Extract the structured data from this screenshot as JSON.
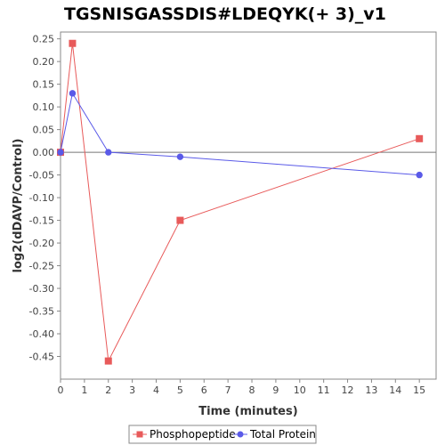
{
  "chart_data": {
    "type": "line",
    "title": "TGSNISGASSDIS#LDEQYK(+ 3)_v1",
    "xlabel": "Time (minutes)",
    "ylabel": "log2(dDAVP/Control)",
    "xlim": [
      0,
      15.7
    ],
    "ylim": [
      -0.5,
      0.265
    ],
    "x_ticks": [
      0,
      1,
      2,
      3,
      4,
      5,
      6,
      7,
      8,
      9,
      10,
      11,
      12,
      13,
      14,
      15
    ],
    "y_ticks": [
      0.25,
      0.2,
      0.15,
      0.1,
      0.05,
      0.0,
      -0.05,
      -0.1,
      -0.15,
      -0.2,
      -0.25,
      -0.3,
      -0.35,
      -0.4,
      -0.45
    ],
    "y_tick_labels": [
      "0.25",
      "0.20",
      "0.15",
      "0.10",
      "0.05",
      "0.00",
      "-0.05",
      "-0.10",
      "-0.15",
      "-0.20",
      "-0.25",
      "-0.30",
      "-0.35",
      "-0.40",
      "-0.45"
    ],
    "zero_line": true,
    "grid": false,
    "legend_position": "bottom",
    "series": [
      {
        "name": "Phosphopeptide",
        "marker": "square",
        "color": "#e85a5a",
        "x": [
          0,
          0.5,
          2,
          5,
          15
        ],
        "y": [
          0.0,
          0.24,
          -0.46,
          -0.15,
          0.03
        ]
      },
      {
        "name": "Total Protein",
        "marker": "circle",
        "color": "#5a5ae8",
        "x": [
          0,
          0.5,
          2,
          5,
          15
        ],
        "y": [
          0.0,
          0.13,
          0.0,
          -0.01,
          -0.05
        ]
      }
    ]
  }
}
